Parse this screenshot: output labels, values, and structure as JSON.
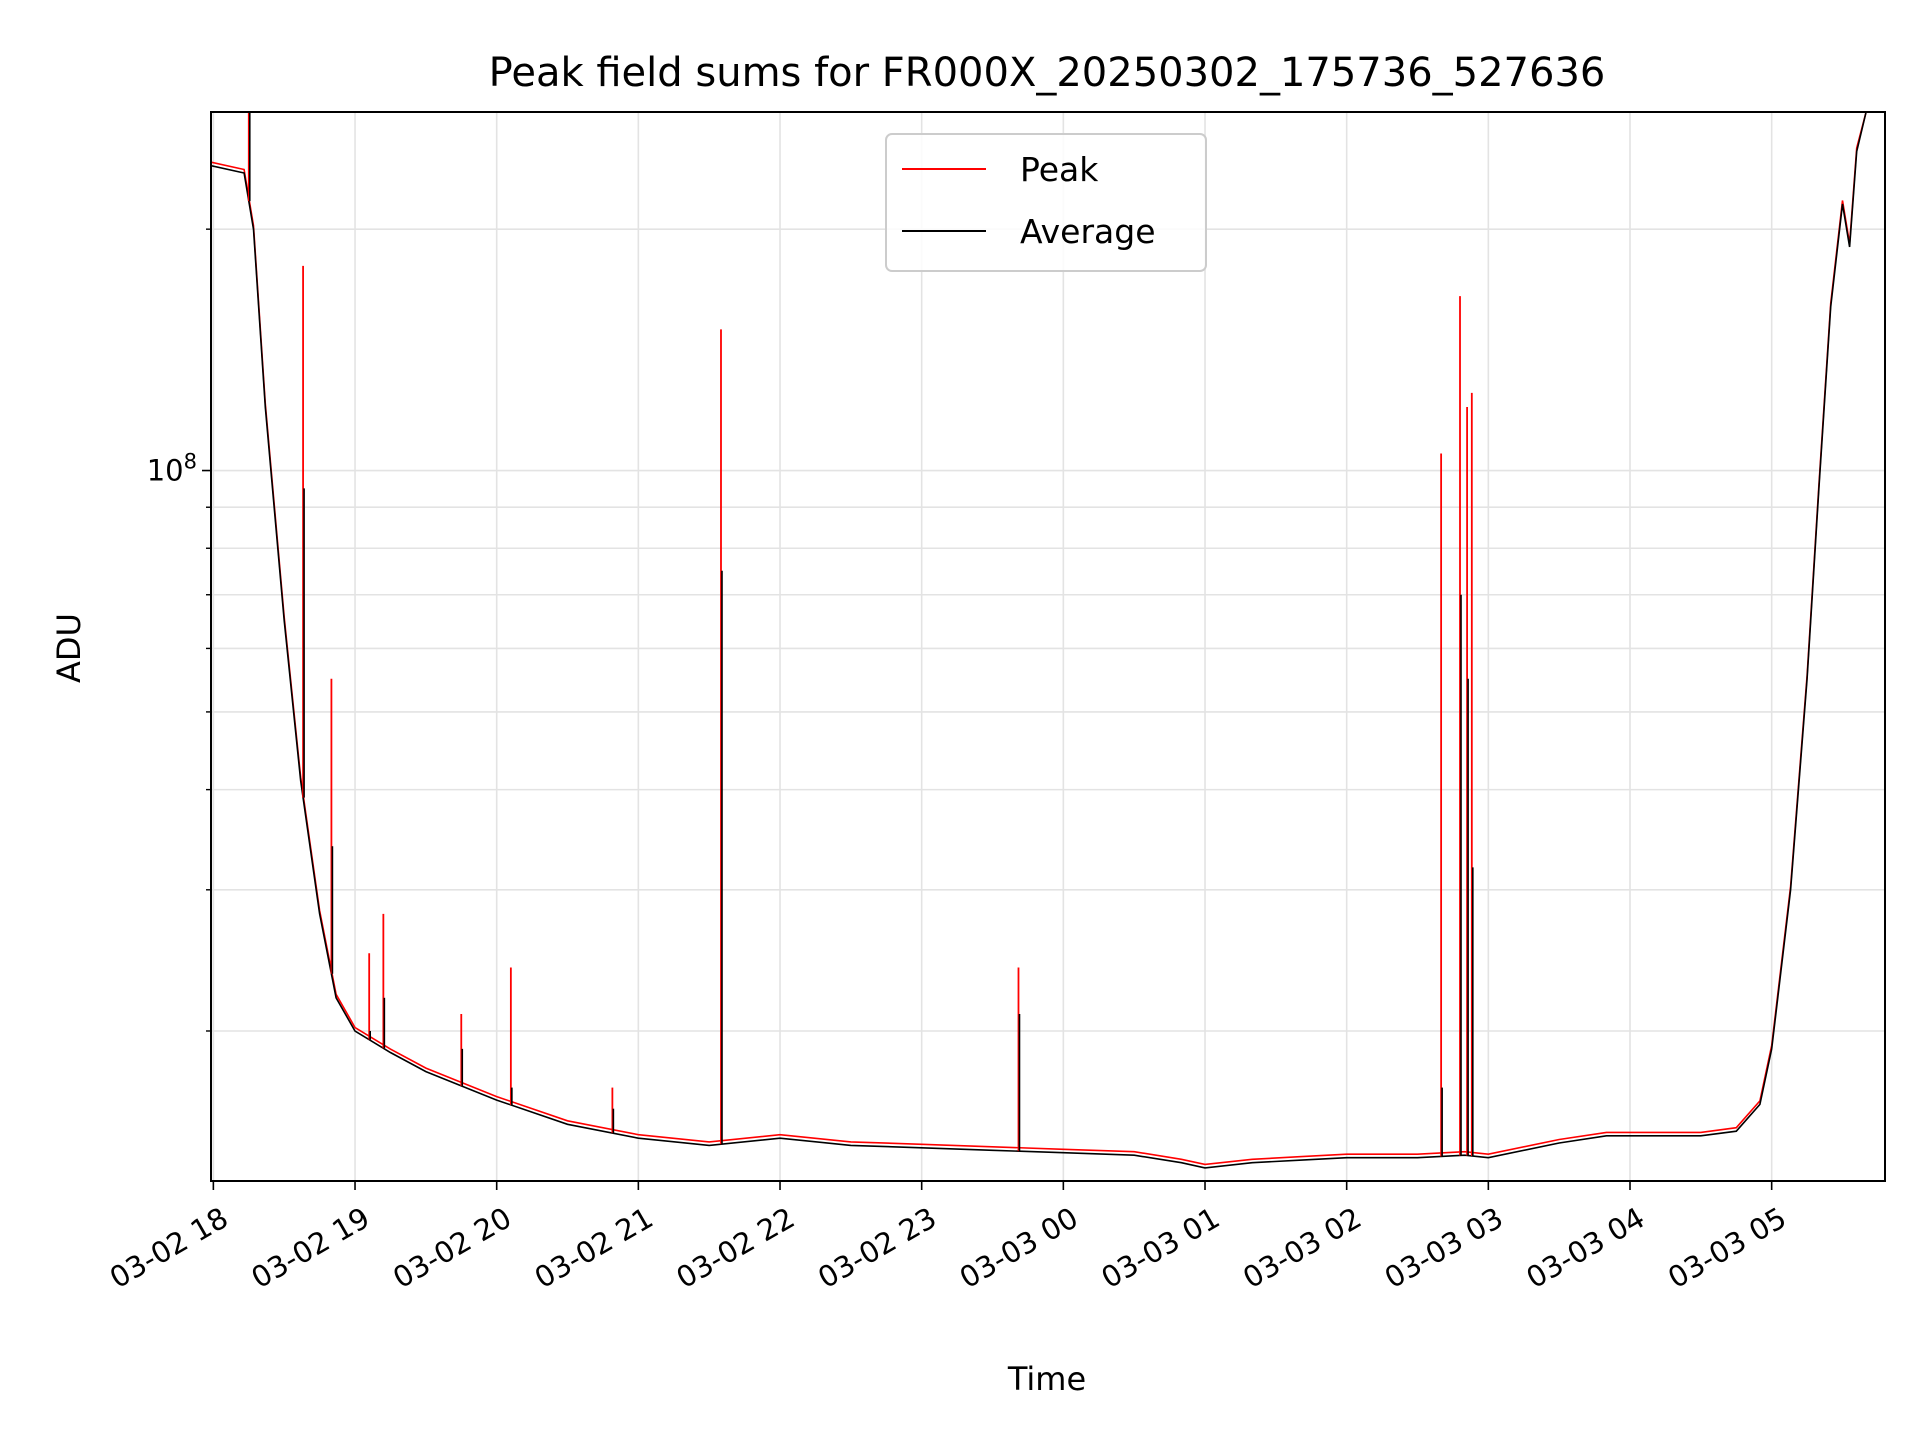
{
  "chart_data": {
    "type": "line",
    "title": "Peak field sums for FR000X_20250302_175736_527636",
    "xlabel": "Time",
    "ylabel": "ADU",
    "yscale": "log",
    "ylim": [
      13000000,
      280000000
    ],
    "xlim": [
      "2025-03-02 17:59",
      "2025-03-03 05:48"
    ],
    "grid": true,
    "legend_position": "top-center",
    "x_tick_labels": [
      "03-02 18",
      "03-02 19",
      "03-02 20",
      "03-02 21",
      "03-02 22",
      "03-02 23",
      "03-03 00",
      "03-03 01",
      "03-03 02",
      "03-03 03",
      "03-03 04",
      "03-03 05"
    ],
    "x_tick_values": [
      "2025-03-02 18:00",
      "2025-03-02 19:00",
      "2025-03-02 20:00",
      "2025-03-02 21:00",
      "2025-03-02 22:00",
      "2025-03-02 23:00",
      "2025-03-03 00:00",
      "2025-03-03 01:00",
      "2025-03-03 02:00",
      "2025-03-03 03:00",
      "2025-03-03 04:00",
      "2025-03-03 05:00"
    ],
    "y_tick_labels": [
      {
        "base": "10",
        "exp": "8",
        "value": 100000000
      }
    ],
    "y_minor_ticks": [
      20000000,
      30000000,
      40000000,
      50000000,
      60000000,
      70000000,
      80000000,
      90000000,
      200000000
    ],
    "baseline": {
      "x": [
        "2025-03-02 17:59",
        "2025-03-02 18:13",
        "2025-03-02 18:17",
        "2025-03-02 18:22",
        "2025-03-02 18:30",
        "2025-03-02 18:37",
        "2025-03-02 18:45",
        "2025-03-02 18:52",
        "2025-03-02 19:00",
        "2025-03-02 19:15",
        "2025-03-02 19:30",
        "2025-03-02 20:00",
        "2025-03-02 20:30",
        "2025-03-02 21:00",
        "2025-03-02 21:30",
        "2025-03-02 22:00",
        "2025-03-02 22:30",
        "2025-03-02 23:00",
        "2025-03-02 23:30",
        "2025-03-03 00:00",
        "2025-03-03 00:30",
        "2025-03-03 00:50",
        "2025-03-03 01:00",
        "2025-03-03 01:20",
        "2025-03-03 01:40",
        "2025-03-03 02:00",
        "2025-03-03 02:30",
        "2025-03-03 02:50",
        "2025-03-03 03:00",
        "2025-03-03 03:30",
        "2025-03-03 03:50",
        "2025-03-03 04:15",
        "2025-03-03 04:30",
        "2025-03-03 04:45",
        "2025-03-03 04:55",
        "2025-03-03 05:00",
        "2025-03-03 05:08",
        "2025-03-03 05:15",
        "2025-03-03 05:20",
        "2025-03-03 05:25",
        "2025-03-03 05:30",
        "2025-03-03 05:33",
        "2025-03-03 05:36",
        "2025-03-03 05:40"
      ],
      "y": [
        240000000,
        235000000,
        200000000,
        120000000,
        65000000,
        41000000,
        28000000,
        22000000,
        20000000,
        18800000,
        17800000,
        16400000,
        15300000,
        14700000,
        14400000,
        14700000,
        14400000,
        14300000,
        14200000,
        14100000,
        14000000,
        13700000,
        13500000,
        13700000,
        13800000,
        13900000,
        13900000,
        14000000,
        13900000,
        14500000,
        14800000,
        14800000,
        14800000,
        15000000,
        16200000,
        19000000,
        30000000,
        55000000,
        95000000,
        160000000,
        215000000,
        190000000,
        250000000,
        300000000
      ]
    },
    "spikes": {
      "x": [
        "2025-03-02 18:15",
        "2025-03-02 18:38",
        "2025-03-02 18:50",
        "2025-03-02 19:06",
        "2025-03-02 19:12",
        "2025-03-02 19:45",
        "2025-03-02 20:06",
        "2025-03-02 20:49",
        "2025-03-02 21:35",
        "2025-03-02 23:41",
        "2025-03-03 02:40",
        "2025-03-03 02:48",
        "2025-03-03 02:51",
        "2025-03-03 02:53"
      ],
      "peak": [
        280000000,
        180000000,
        55000000,
        25000000,
        28000000,
        21000000,
        24000000,
        17000000,
        150000000,
        24000000,
        105000000,
        165000000,
        120000000,
        125000000
      ],
      "average": [
        280000000,
        95000000,
        34000000,
        20000000,
        22000000,
        19000000,
        17000000,
        16000000,
        75000000,
        21000000,
        17000000,
        70000000,
        55000000,
        32000000
      ]
    },
    "series": [
      {
        "name": "Peak",
        "color": "#ff0000"
      },
      {
        "name": "Average",
        "color": "#000000"
      }
    ]
  }
}
